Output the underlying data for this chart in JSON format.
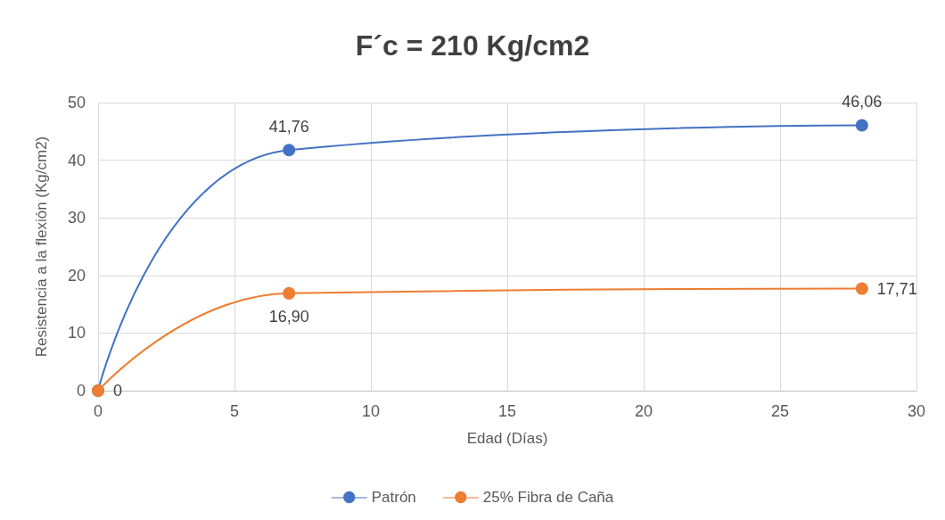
{
  "chart_data": {
    "type": "line",
    "title": "F´c = 210 Kg/cm2",
    "xlabel": "Edad (Días)",
    "ylabel": "Resistencia a la flexión (Kg/cm2)",
    "x": [
      0,
      7,
      28
    ],
    "series": [
      {
        "name": "Patrón",
        "color": "#4472c4",
        "values": [
          0,
          41.76,
          46.06
        ],
        "value_labels": [
          null,
          "41,76",
          "46,06"
        ]
      },
      {
        "name": "25% Fibra de Caña",
        "color": "#ed7d31",
        "values": [
          0,
          16.9,
          17.71
        ],
        "value_labels": [
          "0",
          "16,90",
          "17,71"
        ]
      }
    ],
    "xlim": [
      0,
      30
    ],
    "xticks": [
      0,
      5,
      10,
      15,
      20,
      25,
      30
    ],
    "ylim": [
      0,
      50
    ],
    "yticks": [
      0,
      10,
      20,
      30,
      40,
      50
    ],
    "grid": true,
    "legend": "bottom",
    "marker": "circle",
    "line_style": "solid"
  }
}
